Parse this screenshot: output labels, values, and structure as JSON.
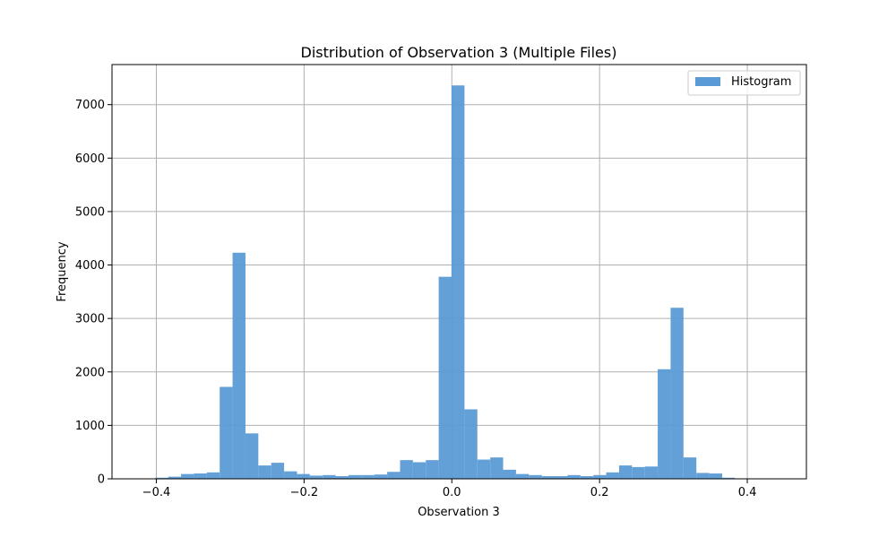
{
  "chart_data": {
    "type": "bar",
    "title": "Distribution of Observation 3 (Multiple Files)",
    "xlabel": "Observation 3",
    "ylabel": "Frequency",
    "xlim": [
      -0.46,
      0.48
    ],
    "ylim": [
      0,
      7750
    ],
    "x_ticks": [
      -0.4,
      -0.2,
      0.0,
      0.2,
      0.4
    ],
    "x_tick_labels": [
      "−0.4",
      "−0.2",
      "0.0",
      "0.2",
      "0.4"
    ],
    "y_ticks": [
      0,
      1000,
      2000,
      3000,
      4000,
      5000,
      6000,
      7000
    ],
    "y_tick_labels": [
      "0",
      "1000",
      "2000",
      "3000",
      "4000",
      "5000",
      "6000",
      "7000"
    ],
    "grid": true,
    "legend": {
      "position": "top-right",
      "entries": [
        "Histogram"
      ]
    },
    "bar_color": "#5b9bd5",
    "bin_start": -0.4363,
    "bin_width": 0.01744,
    "series": [
      {
        "name": "Histogram",
        "values": [
          2,
          5,
          20,
          40,
          90,
          100,
          120,
          1720,
          4230,
          850,
          250,
          300,
          140,
          90,
          60,
          70,
          50,
          70,
          70,
          80,
          130,
          350,
          310,
          350,
          3780,
          7360,
          1300,
          360,
          400,
          170,
          90,
          70,
          50,
          50,
          70,
          50,
          70,
          120,
          250,
          220,
          230,
          2050,
          3200,
          400,
          110,
          100,
          20,
          5,
          2,
          1
        ]
      }
    ]
  }
}
